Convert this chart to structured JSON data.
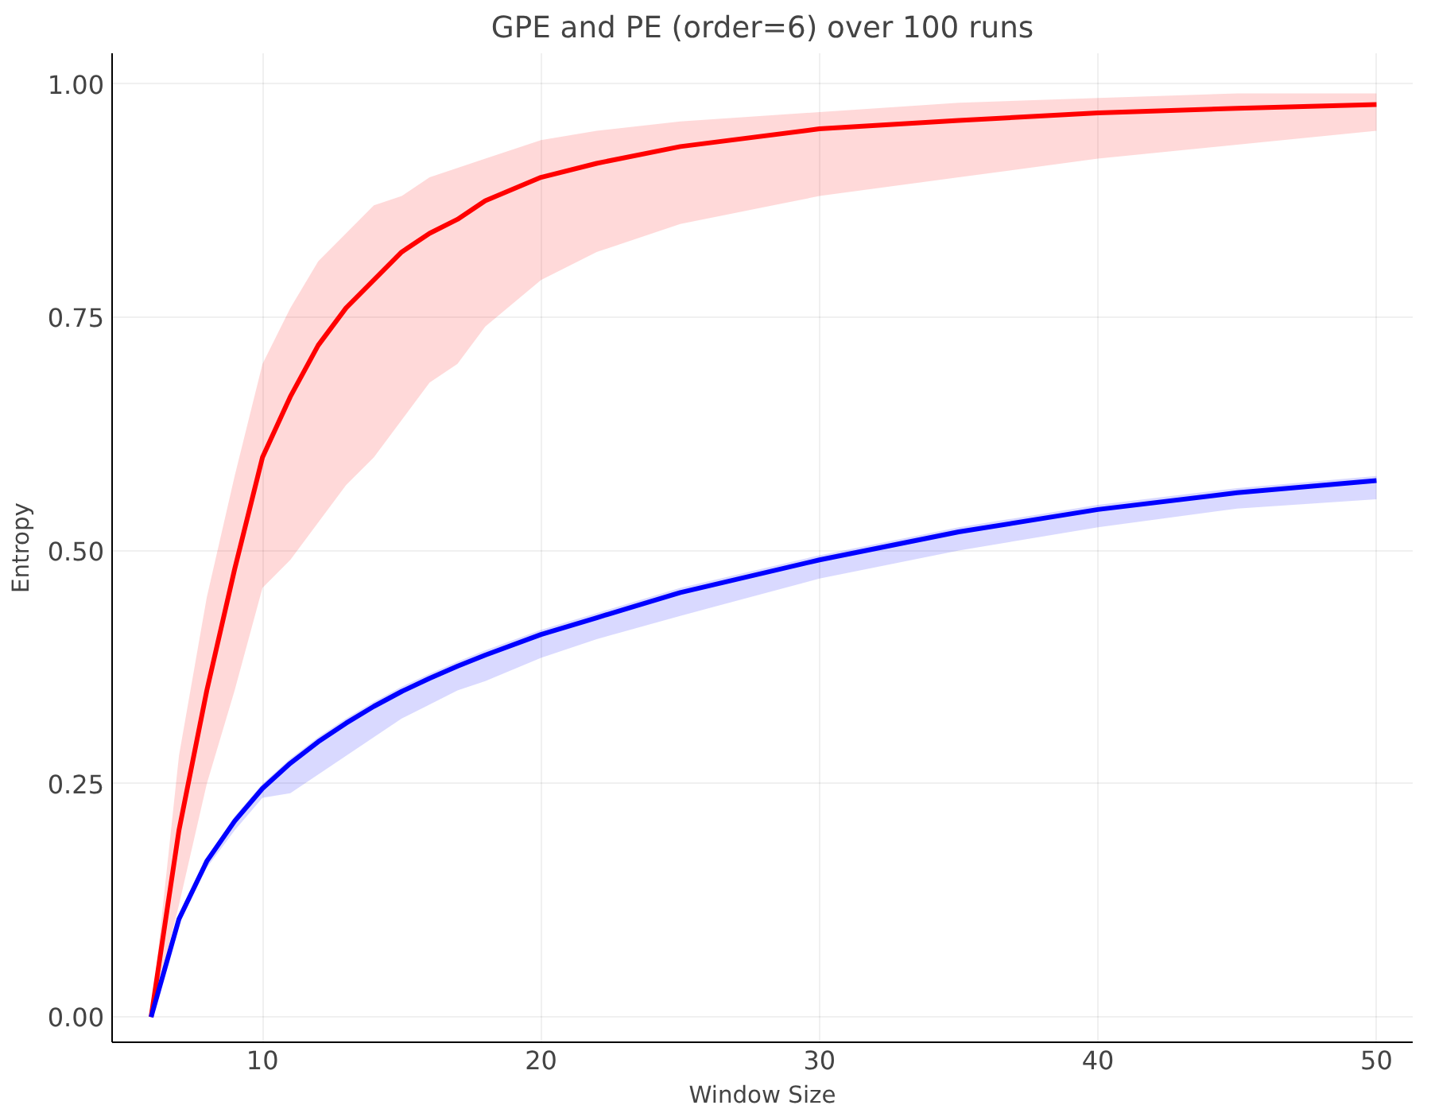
{
  "chart_data": {
    "type": "line",
    "title": "GPE and PE (order=6) over 100 runs",
    "xlabel": "Window Size",
    "ylabel": "Entropy",
    "x": [
      6,
      7,
      8,
      9,
      10,
      11,
      12,
      13,
      14,
      15,
      16,
      17,
      18,
      20,
      22,
      25,
      30,
      35,
      40,
      45,
      50
    ],
    "series": [
      {
        "color": "#ff0000",
        "values": [
          0,
          0.2,
          0.35,
          0.48,
          0.6,
          0.665,
          0.72,
          0.76,
          0.79,
          0.82,
          0.84,
          0.855,
          0.875,
          0.9,
          0.915,
          0.933,
          0.952,
          0.961,
          0.969,
          0.974,
          0.978
        ],
        "lower": [
          0,
          0.12,
          0.25,
          0.35,
          0.46,
          0.49,
          0.53,
          0.57,
          0.6,
          0.64,
          0.68,
          0.7,
          0.74,
          0.79,
          0.82,
          0.85,
          0.88,
          0.9,
          0.92,
          0.935,
          0.95
        ],
        "upper": [
          0,
          0.28,
          0.45,
          0.58,
          0.7,
          0.76,
          0.81,
          0.84,
          0.87,
          0.88,
          0.9,
          0.91,
          0.92,
          0.94,
          0.95,
          0.96,
          0.97,
          0.98,
          0.985,
          0.99,
          0.99
        ]
      },
      {
        "color": "#0000ff",
        "values": [
          0,
          0.105,
          0.167,
          0.21,
          0.245,
          0.272,
          0.295,
          0.315,
          0.333,
          0.349,
          0.363,
          0.376,
          0.388,
          0.41,
          0.428,
          0.455,
          0.49,
          0.52,
          0.544,
          0.562,
          0.575
        ],
        "lower": [
          0,
          0.1,
          0.16,
          0.2,
          0.235,
          0.24,
          0.26,
          0.28,
          0.3,
          0.32,
          0.335,
          0.35,
          0.36,
          0.385,
          0.405,
          0.43,
          0.47,
          0.5,
          0.525,
          0.545,
          0.555
        ],
        "upper": [
          0,
          0.11,
          0.17,
          0.215,
          0.25,
          0.277,
          0.3,
          0.32,
          0.338,
          0.354,
          0.368,
          0.381,
          0.393,
          0.415,
          0.433,
          0.46,
          0.495,
          0.525,
          0.549,
          0.567,
          0.58
        ]
      }
    ],
    "xlim": [
      4.6,
      51.3
    ],
    "xticks": [
      10,
      20,
      30,
      40,
      50
    ],
    "ylim": [
      -0.027,
      1.033
    ],
    "yticks": [
      {
        "value": 0,
        "label": "0.00"
      },
      {
        "value": 0.25,
        "label": "0.25"
      },
      {
        "value": 0.5,
        "label": "0.50"
      },
      {
        "value": 0.75,
        "label": "0.75"
      },
      {
        "value": 1,
        "label": "1.00"
      }
    ],
    "grid": true,
    "line_style": "solid"
  }
}
